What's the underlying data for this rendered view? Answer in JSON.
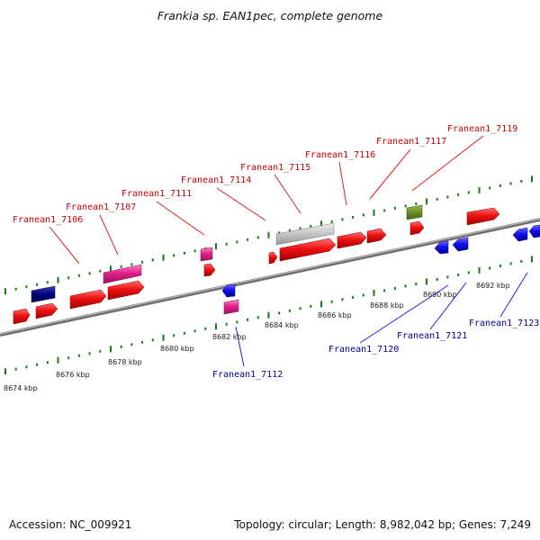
{
  "title": "Frankia sp. EAN1pec, complete genome",
  "footer": {
    "accession": "Accession: NC_009921",
    "topology": "Topology: circular; Length: 8,982,042 bp; Genes: 7,249"
  },
  "colors": {
    "forward_gene": "#e01010",
    "reverse_gene": "#1010e0",
    "rna_gene": "#e0208a",
    "pseudo_gene": "#bbbbbb",
    "olive_gene": "#6b8e23",
    "navy_gene": "#000080",
    "tick": "#1a7a1a",
    "backbone": "#888888",
    "label_forward": "#cc0000",
    "label_reverse": "#000099"
  },
  "scale": {
    "ticks": [
      {
        "label": "8674 kbp"
      },
      {
        "label": "8676 kbp"
      },
      {
        "label": "8678 kbp"
      },
      {
        "label": "8680 kbp"
      },
      {
        "label": "8682 kbp"
      },
      {
        "label": "8684 kbp"
      },
      {
        "label": "8686 kbp"
      },
      {
        "label": "8688 kbp"
      },
      {
        "label": "8690 kbp"
      },
      {
        "label": "8692 kbp"
      }
    ]
  },
  "gene_labels": [
    {
      "label": "Franean1_7106",
      "strand": "forward"
    },
    {
      "label": "Franean1_7107",
      "strand": "forward"
    },
    {
      "label": "Franean1_7111",
      "strand": "forward"
    },
    {
      "label": "Franean1_7114",
      "strand": "forward"
    },
    {
      "label": "Franean1_7115",
      "strand": "forward"
    },
    {
      "label": "Franean1_7116",
      "strand": "forward"
    },
    {
      "label": "Franean1_7117",
      "strand": "forward"
    },
    {
      "label": "Franean1_7119",
      "strand": "forward"
    },
    {
      "label": "Franean1_7112",
      "strand": "reverse"
    },
    {
      "label": "Franean1_7120",
      "strand": "reverse"
    },
    {
      "label": "Franean1_7121",
      "strand": "reverse"
    },
    {
      "label": "Franean1_7123",
      "strand": "reverse"
    }
  ]
}
